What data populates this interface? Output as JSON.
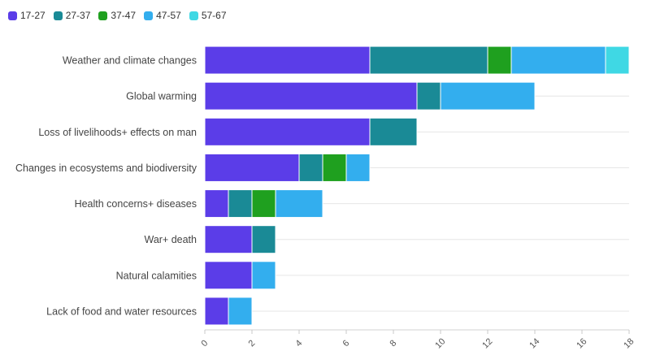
{
  "chart_data": {
    "type": "bar",
    "orientation": "horizontal",
    "stacked": true,
    "title": "",
    "xlabel": "",
    "ylabel": "",
    "xlim": [
      0,
      18
    ],
    "xticks": [
      0,
      2,
      4,
      6,
      8,
      10,
      12,
      14,
      16,
      18
    ],
    "grid": true,
    "legend_position": "top-left",
    "categories": [
      "Weather and climate changes",
      "Global warming",
      "Loss of livelihoods+ effects on man",
      "Changes in ecosystems and biodiversity",
      "Health concerns+ diseases",
      "War+ death",
      "Natural calamities",
      "Lack of food and water resources"
    ],
    "series": [
      {
        "name": "17-27",
        "color": "#5b3de8",
        "values": [
          7,
          9,
          7,
          4,
          1,
          2,
          2,
          1
        ]
      },
      {
        "name": "27-37",
        "color": "#1a8a96",
        "values": [
          5,
          1,
          2,
          1,
          1,
          1,
          0,
          0
        ]
      },
      {
        "name": "37-47",
        "color": "#1fa01f",
        "values": [
          1,
          0,
          0,
          1,
          1,
          0,
          0,
          0
        ]
      },
      {
        "name": "47-57",
        "color": "#33aeee",
        "values": [
          4,
          4,
          0,
          1,
          2,
          0,
          1,
          1
        ]
      },
      {
        "name": "57-67",
        "color": "#3fd8e4",
        "values": [
          1,
          0,
          0,
          0,
          0,
          0,
          0,
          0
        ]
      }
    ]
  }
}
